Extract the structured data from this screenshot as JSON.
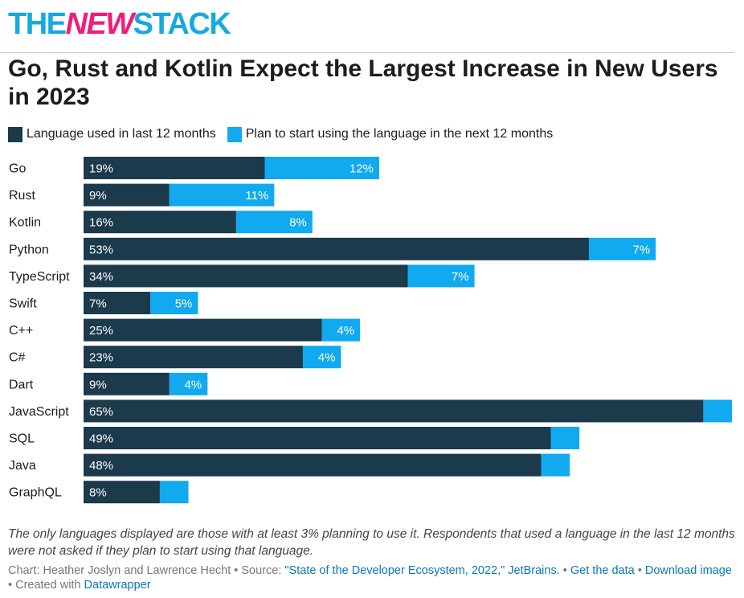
{
  "brand": {
    "part1": "THE",
    "part2": "NEW",
    "part3": "STACK"
  },
  "title": "Go, Rust and Kotlin Expect the Largest Increase in New Users in 2023",
  "colors": {
    "used": "#1b3a4b",
    "plan": "#11a9ef",
    "brand_blue": "#15a9e0",
    "brand_pink": "#ec1f79"
  },
  "legend": [
    {
      "label": "Language used in last 12 months",
      "color": "#1b3a4b"
    },
    {
      "label": "Plan to start using the language in the next 12 months",
      "color": "#11a9ef"
    }
  ],
  "chart_data": {
    "type": "bar",
    "orientation": "horizontal",
    "stacked": true,
    "categories": [
      "Go",
      "Rust",
      "Kotlin",
      "Python",
      "TypeScript",
      "Swift",
      "C++",
      "C#",
      "Dart",
      "JavaScript",
      "SQL",
      "Java",
      "GraphQL"
    ],
    "series": [
      {
        "name": "Language used in last 12 months",
        "values": [
          19,
          9,
          16,
          53,
          34,
          7,
          25,
          23,
          9,
          65,
          49,
          48,
          8
        ],
        "labels": [
          "19%",
          "9%",
          "16%",
          "53%",
          "34%",
          "7%",
          "25%",
          "23%",
          "9%",
          "65%",
          "49%",
          "48%",
          "8%"
        ]
      },
      {
        "name": "Plan to start using the language in the next 12 months",
        "values": [
          12,
          11,
          8,
          7,
          7,
          5,
          4,
          4,
          4,
          3,
          3,
          3,
          3
        ],
        "labels": [
          "12%",
          "11%",
          "8%",
          "7%",
          "7%",
          "5%",
          "4%",
          "4%",
          "4%",
          "",
          "",
          "",
          ""
        ]
      }
    ],
    "xlim": [
      0,
      68
    ],
    "grid": false,
    "legend_position": "top-left"
  },
  "footnote": "The only languages displayed are those with at least 3% planning to use it. Respondents that used a language in the last 12 months were not asked if they plan to start using that language.",
  "credits": {
    "prefix": "Chart: Heather Joslyn and Lawrence Hecht • Source: ",
    "source_link": "\"State of the Developer Ecosystem, 2022,\" JetBrains.",
    "sep1": " • ",
    "get_data": "Get the data",
    "sep2": " • ",
    "download": "Download image",
    "sep3": " • Created with ",
    "datawrapper": "Datawrapper"
  }
}
